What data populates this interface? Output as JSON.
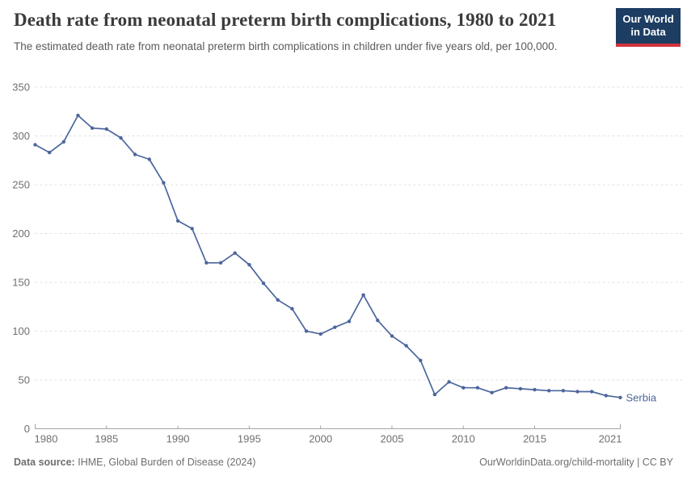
{
  "header": {
    "title": "Death rate from neonatal preterm birth complications, 1980 to 2021",
    "subtitle": "The estimated death rate from neonatal preterm birth complications in children under five years old, per 100,000."
  },
  "logo": {
    "line1": "Our World",
    "line2": "in Data"
  },
  "chart_data": {
    "type": "line",
    "title": "Death rate from neonatal preterm birth complications, 1980 to 2021",
    "xlabel": "",
    "ylabel": "",
    "ylim": [
      0,
      350
    ],
    "yticks": [
      0,
      50,
      100,
      150,
      200,
      250,
      300,
      350
    ],
    "xticks": [
      1980,
      1985,
      1990,
      1995,
      2000,
      2005,
      2010,
      2015,
      2021
    ],
    "grid": "horizontal-dashed",
    "legend": "end-of-line-label",
    "x": [
      1980,
      1981,
      1982,
      1983,
      1984,
      1985,
      1986,
      1987,
      1988,
      1989,
      1990,
      1991,
      1992,
      1993,
      1994,
      1995,
      1996,
      1997,
      1998,
      1999,
      2000,
      2001,
      2002,
      2003,
      2004,
      2005,
      2006,
      2007,
      2008,
      2009,
      2010,
      2011,
      2012,
      2013,
      2014,
      2015,
      2016,
      2017,
      2018,
      2019,
      2020,
      2021
    ],
    "series": [
      {
        "name": "Serbia",
        "color": "#4C669C",
        "values": [
          291,
          283,
          294,
          321,
          308,
          307,
          298,
          281,
          276,
          252,
          213,
          205,
          170,
          170,
          180,
          168,
          149,
          132,
          123,
          100,
          97,
          104,
          110,
          137,
          111,
          95,
          85,
          70,
          35,
          48,
          42,
          42,
          37,
          42,
          41,
          40,
          39,
          39,
          38,
          38,
          34,
          32
        ]
      }
    ]
  },
  "footer": {
    "source_label": "Data source:",
    "source_text": "IHME, Global Burden of Disease (2024)",
    "citation": "OurWorldinData.org/child-mortality | CC BY"
  },
  "colors": {
    "line": "#4C669C",
    "grid": "#e1e1e1",
    "axis": "#a5a5a5",
    "tick_label": "#6f6f6f",
    "title": "#3b3b3b",
    "subtitle": "#5a5a5a",
    "footer": "#6e6e6e",
    "logo_bg": "#1d3d63",
    "logo_accent": "#d2333c"
  }
}
